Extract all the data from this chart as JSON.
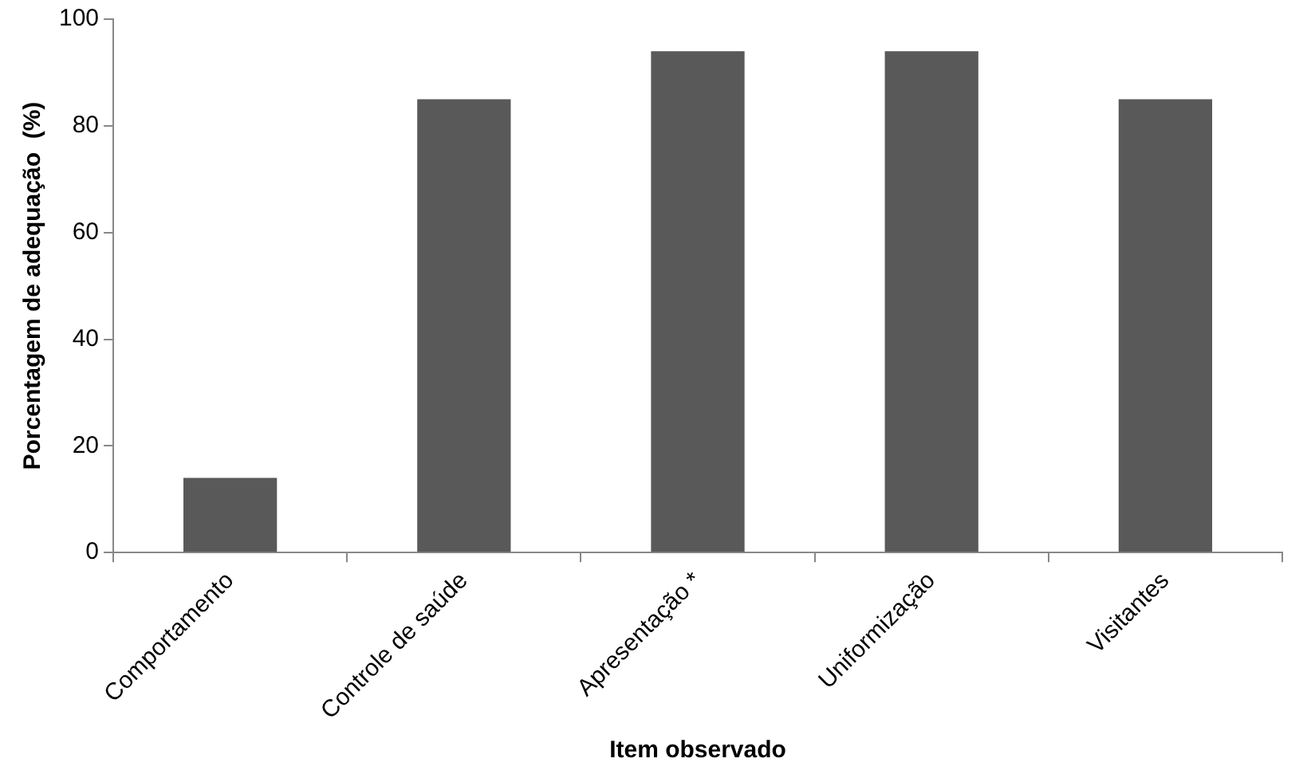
{
  "chart_data": {
    "type": "bar",
    "xlabel": "Item observado",
    "ylabel": "Porcentagem de adequação  (%)",
    "categories": [
      "Comportamento",
      "Controle de saúde",
      "Apresentação *",
      "Uniformização",
      "Visitantes"
    ],
    "values": [
      14,
      85,
      94,
      94,
      85
    ],
    "color": "#595959",
    "ylim": [
      0,
      100
    ],
    "yticks": [
      0,
      20,
      40,
      60,
      80,
      100
    ],
    "grid": false,
    "legend": false
  }
}
